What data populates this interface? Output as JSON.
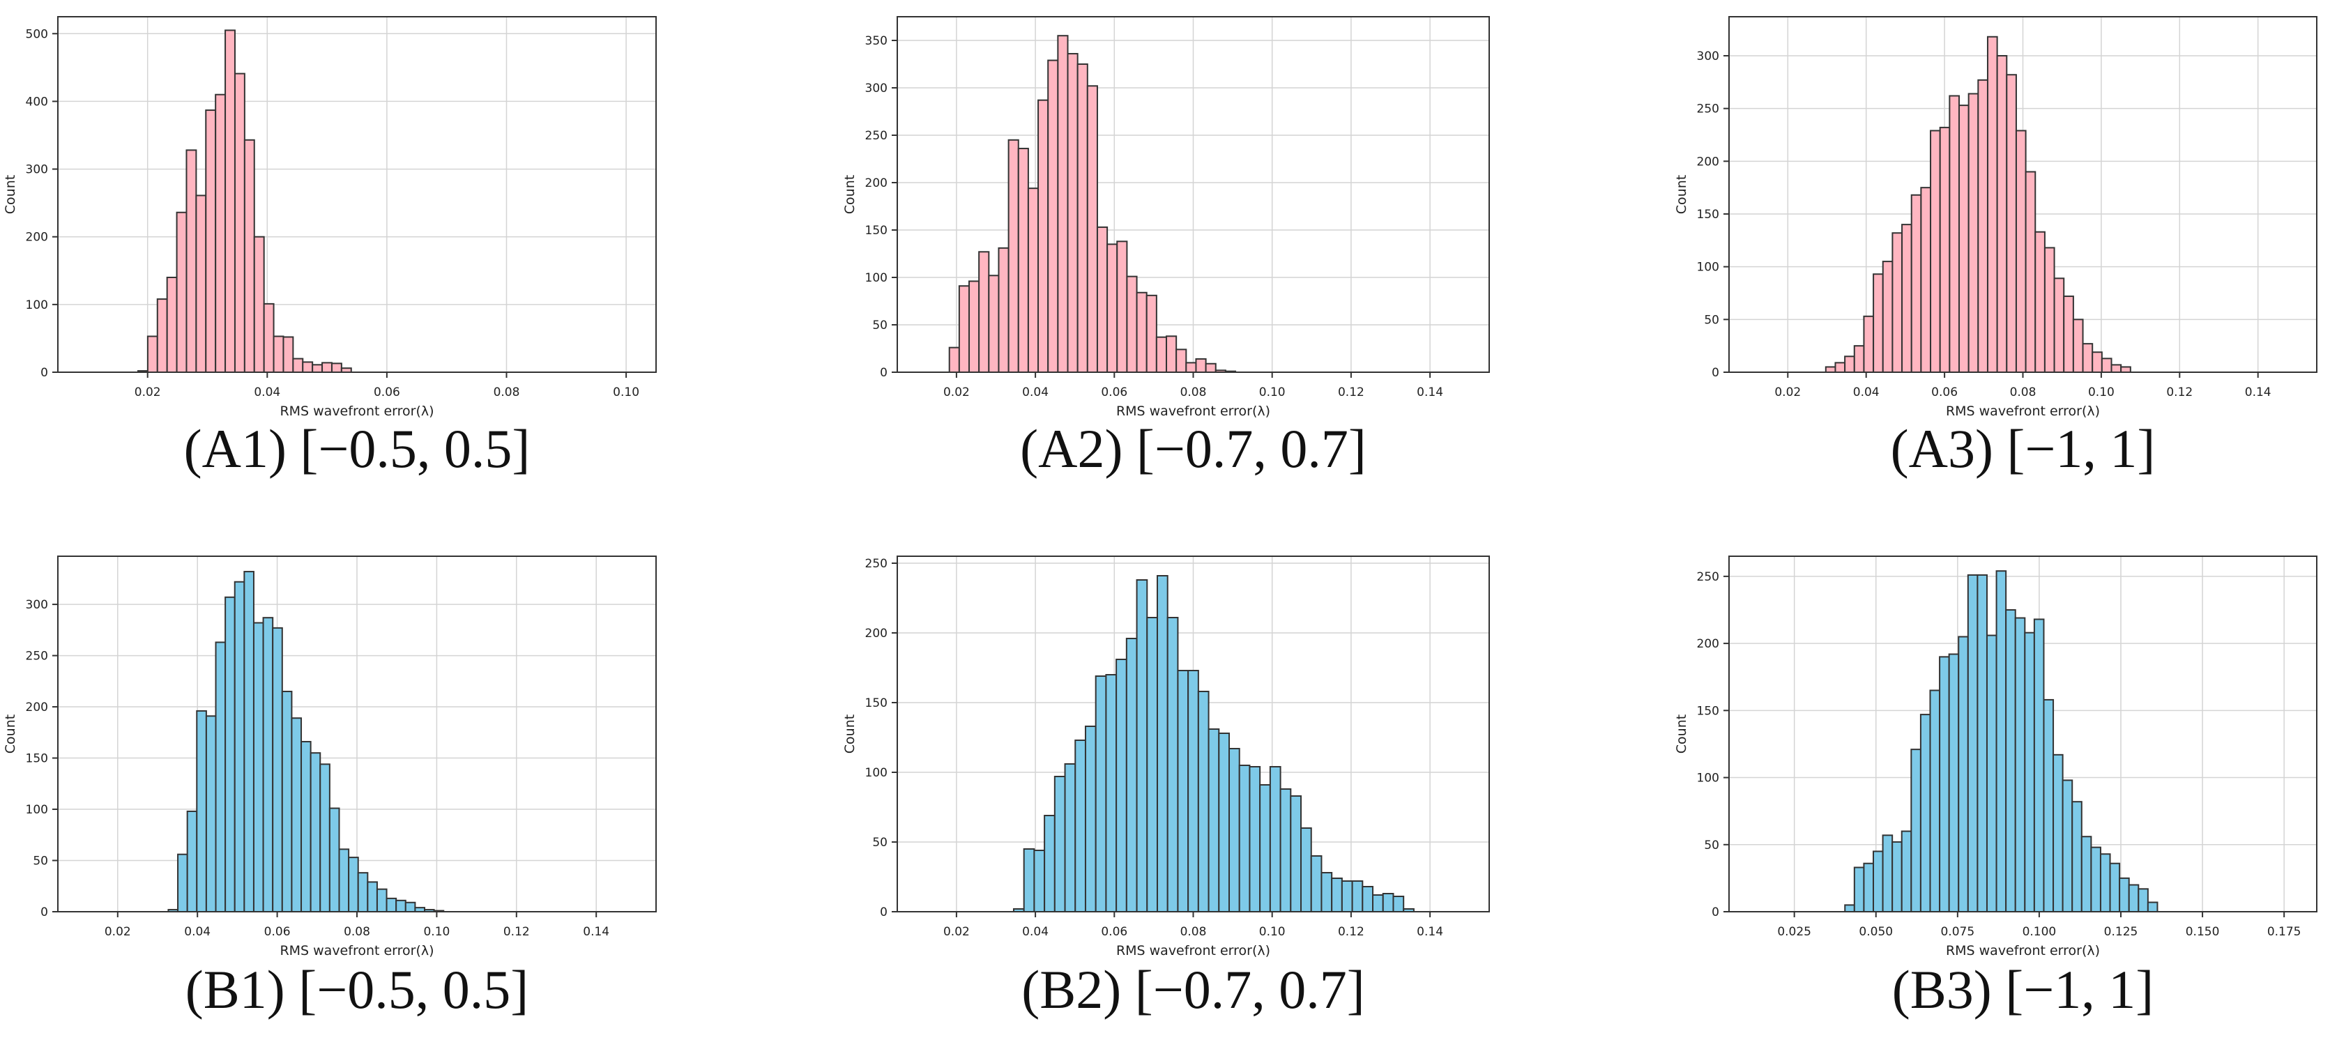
{
  "style": {
    "colors": {
      "pink_fill": "#ffb6c1",
      "blue_fill": "#7ecae8",
      "bar_edge": "#333333",
      "grid": "#d4d4d4",
      "axis": "#333333",
      "text": "#222222"
    }
  },
  "chart_data": [
    {
      "id": "A1",
      "type": "bar",
      "caption": "(A1) [−0.5, 0.5]",
      "xlabel": "RMS wavefront error(λ)",
      "ylabel": "Count",
      "xlim": [
        0.005,
        0.105
      ],
      "ylim": [
        0,
        525
      ],
      "xticks": [
        0.02,
        0.04,
        0.06,
        0.08,
        0.1
      ],
      "xtick_labels": [
        "0.02",
        "0.04",
        "0.06",
        "0.08",
        "0.10"
      ],
      "yticks": [
        0,
        100,
        200,
        300,
        400,
        500
      ],
      "ytick_labels": [
        "0",
        "100",
        "200",
        "300",
        "400",
        "500"
      ],
      "grid": true,
      "color": "pink",
      "bin_start": 0.0184,
      "bin_width": 0.00162,
      "values": [
        2,
        53,
        108,
        140,
        236,
        328,
        261,
        387,
        410,
        505,
        441,
        343,
        200,
        101,
        53,
        52,
        20,
        15,
        11,
        14,
        13,
        6
      ]
    },
    {
      "id": "A2",
      "type": "bar",
      "caption": "(A2) [−0.7, 0.7]",
      "xlabel": "RMS wavefront error(λ)",
      "ylabel": "Count",
      "xlim": [
        0.005,
        0.155
      ],
      "ylim": [
        0,
        375
      ],
      "xticks": [
        0.02,
        0.04,
        0.06,
        0.08,
        0.1,
        0.12,
        0.14
      ],
      "xtick_labels": [
        "0.02",
        "0.04",
        "0.06",
        "0.08",
        "0.10",
        "0.12",
        "0.14"
      ],
      "yticks": [
        0,
        50,
        100,
        150,
        200,
        250,
        300,
        350
      ],
      "ytick_labels": [
        "0",
        "50",
        "100",
        "150",
        "200",
        "250",
        "300",
        "350"
      ],
      "grid": true,
      "color": "pink",
      "bin_start": 0.0182,
      "bin_width": 0.0025,
      "values": [
        26,
        91,
        96,
        127,
        102,
        131,
        245,
        236,
        194,
        287,
        329,
        355,
        336,
        325,
        302,
        153,
        135,
        138,
        101,
        84,
        81,
        37,
        38,
        24,
        10,
        14,
        9,
        2,
        1
      ]
    },
    {
      "id": "A3",
      "type": "bar",
      "caption": "(A3) [−1, 1]",
      "xlabel": "RMS wavefront error(λ)",
      "ylabel": "Count",
      "xlim": [
        0.005,
        0.155
      ],
      "ylim": [
        0,
        337
      ],
      "xticks": [
        0.02,
        0.04,
        0.06,
        0.08,
        0.1,
        0.12,
        0.14
      ],
      "xtick_labels": [
        "0.02",
        "0.04",
        "0.06",
        "0.08",
        "0.10",
        "0.12",
        "0.14"
      ],
      "yticks": [
        0,
        50,
        100,
        150,
        200,
        250,
        300
      ],
      "ytick_labels": [
        "0",
        "50",
        "100",
        "150",
        "200",
        "250",
        "300"
      ],
      "grid": true,
      "color": "pink",
      "bin_start": 0.0297,
      "bin_width": 0.00243,
      "values": [
        5,
        9,
        15,
        25,
        53,
        93,
        105,
        132,
        140,
        168,
        175,
        229,
        232,
        262,
        253,
        264,
        277,
        318,
        300,
        282,
        229,
        190,
        133,
        118,
        89,
        72,
        50,
        27,
        19,
        13,
        7,
        5
      ]
    },
    {
      "id": "B1",
      "type": "bar",
      "caption": "(B1) [−0.5, 0.5]",
      "xlabel": "RMS wavefront error(λ)",
      "ylabel": "Count",
      "xlim": [
        0.005,
        0.155
      ],
      "ylim": [
        0,
        347
      ],
      "xticks": [
        0.02,
        0.04,
        0.06,
        0.08,
        0.1,
        0.12,
        0.14
      ],
      "xtick_labels": [
        "0.02",
        "0.04",
        "0.06",
        "0.08",
        "0.10",
        "0.12",
        "0.14"
      ],
      "yticks": [
        0,
        50,
        100,
        150,
        200,
        250,
        300
      ],
      "ytick_labels": [
        "0",
        "50",
        "100",
        "150",
        "200",
        "250",
        "300"
      ],
      "grid": true,
      "color": "blue",
      "bin_start": 0.0327,
      "bin_width": 0.00238,
      "values": [
        2,
        56,
        98,
        196,
        191,
        263,
        307,
        322,
        332,
        282,
        287,
        277,
        215,
        189,
        166,
        155,
        144,
        101,
        61,
        53,
        38,
        29,
        22,
        13,
        11,
        9,
        4,
        2,
        1
      ]
    },
    {
      "id": "B2",
      "type": "bar",
      "caption": "(B2) [−0.7, 0.7]",
      "xlabel": "RMS wavefront error(λ)",
      "ylabel": "Count",
      "xlim": [
        0.005,
        0.155
      ],
      "ylim": [
        0,
        255
      ],
      "xticks": [
        0.02,
        0.04,
        0.06,
        0.08,
        0.1,
        0.12,
        0.14
      ],
      "xtick_labels": [
        "0.02",
        "0.04",
        "0.06",
        "0.08",
        "0.10",
        "0.12",
        "0.14"
      ],
      "yticks": [
        0,
        50,
        100,
        150,
        200,
        250
      ],
      "ytick_labels": [
        "0",
        "50",
        "100",
        "150",
        "200",
        "250"
      ],
      "grid": true,
      "color": "blue",
      "bin_start": 0.0345,
      "bin_width": 0.0026,
      "values": [
        2,
        45,
        44,
        69,
        97,
        106,
        123,
        133,
        169,
        170,
        181,
        196,
        238,
        211,
        241,
        211,
        173,
        173,
        158,
        131,
        128,
        117,
        105,
        104,
        91,
        104,
        88,
        83,
        60,
        40,
        28,
        24,
        22,
        22,
        18,
        12,
        13,
        11,
        2
      ]
    },
    {
      "id": "B3",
      "type": "bar",
      "caption": "(B3) [−1, 1]",
      "xlabel": "RMS wavefront error(λ)",
      "ylabel": "Count",
      "xlim": [
        0.005,
        0.185
      ],
      "ylim": [
        0,
        265
      ],
      "xticks": [
        0.025,
        0.05,
        0.075,
        0.1,
        0.125,
        0.15,
        0.175
      ],
      "xtick_labels": [
        "0.025",
        "0.050",
        "0.075",
        "0.100",
        "0.125",
        "0.150",
        "0.175"
      ],
      "yticks": [
        0,
        50,
        100,
        150,
        200,
        250
      ],
      "ytick_labels": [
        "0",
        "50",
        "100",
        "150",
        "200",
        "250"
      ],
      "grid": true,
      "color": "blue",
      "bin_start": 0.0405,
      "bin_width": 0.0029,
      "values": [
        5,
        33,
        36,
        45,
        57,
        52,
        60,
        121,
        147,
        165,
        190,
        192,
        205,
        251,
        251,
        206,
        254,
        225,
        219,
        208,
        218,
        158,
        117,
        98,
        82,
        56,
        48,
        43,
        36,
        25,
        20,
        17,
        7
      ]
    }
  ]
}
